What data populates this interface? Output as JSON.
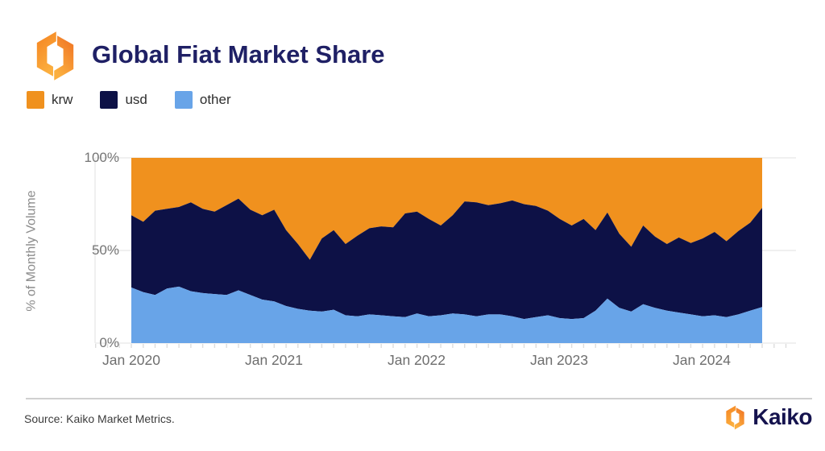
{
  "header": {
    "title": "Global Fiat Market Share"
  },
  "legend": {
    "items": [
      {
        "label": "krw",
        "color": "#F0911E"
      },
      {
        "label": "usd",
        "color": "#0D1146"
      },
      {
        "label": "other",
        "color": "#68A4E8"
      }
    ]
  },
  "chart": {
    "y_axis_label": "% of Monthly Volume",
    "y_ticks": [
      "100%",
      "50%",
      "0%"
    ],
    "x_ticks": [
      "Jan 2020",
      "Jan 2021",
      "Jan 2022",
      "Jan 2023",
      "Jan 2024"
    ]
  },
  "chart_data": {
    "type": "area",
    "stacked": true,
    "unit": "percent_of_monthly_volume",
    "title": "Global Fiat Market Share",
    "ylabel": "% of Monthly Volume",
    "ylim": [
      0,
      100
    ],
    "grid": "horizontal",
    "legend_position": "top-left",
    "x_tick_labels": [
      "Jan 2020",
      "Jan 2021",
      "Jan 2022",
      "Jan 2023",
      "Jan 2024"
    ],
    "y_tick_labels": [
      "100%",
      "50%",
      "0%"
    ],
    "x_months": [
      "2020-01",
      "2020-02",
      "2020-03",
      "2020-04",
      "2020-05",
      "2020-06",
      "2020-07",
      "2020-08",
      "2020-09",
      "2020-10",
      "2020-11",
      "2020-12",
      "2021-01",
      "2021-02",
      "2021-03",
      "2021-04",
      "2021-05",
      "2021-06",
      "2021-07",
      "2021-08",
      "2021-09",
      "2021-10",
      "2021-11",
      "2021-12",
      "2022-01",
      "2022-02",
      "2022-03",
      "2022-04",
      "2022-05",
      "2022-06",
      "2022-07",
      "2022-08",
      "2022-09",
      "2022-10",
      "2022-11",
      "2022-12",
      "2023-01",
      "2023-02",
      "2023-03",
      "2023-04",
      "2023-05",
      "2023-06",
      "2023-07",
      "2023-08",
      "2023-09",
      "2023-10",
      "2023-11",
      "2023-12",
      "2024-01",
      "2024-02",
      "2024-03",
      "2024-04",
      "2024-05",
      "2024-06"
    ],
    "series": [
      {
        "name": "krw",
        "color": "#F0911E",
        "values": [
          31,
          34.5,
          28.5,
          27.5,
          26.5,
          24,
          27.5,
          29,
          25.5,
          22,
          28,
          31,
          28,
          39,
          46.5,
          55,
          43.5,
          39,
          46.5,
          42,
          38,
          37,
          37.5,
          30,
          29,
          33,
          36.5,
          31,
          23.5,
          24,
          25.5,
          24.5,
          23,
          25,
          26,
          28.5,
          33,
          36.5,
          33,
          39,
          29.5,
          41,
          48,
          36.5,
          42.5,
          46.5,
          43,
          46,
          43.5,
          40,
          45,
          39.5,
          35,
          27
        ]
      },
      {
        "name": "usd",
        "color": "#0D1146",
        "values": [
          39,
          38,
          45.5,
          43,
          43,
          48,
          45.5,
          44.5,
          48.5,
          49.5,
          46,
          45.5,
          49.5,
          41,
          35,
          27.5,
          39.5,
          43,
          38.5,
          43.5,
          46.5,
          48,
          48,
          56,
          55,
          52.5,
          48.5,
          53,
          61,
          61.5,
          59,
          60,
          62.5,
          62,
          60,
          56.5,
          53.5,
          50.5,
          53.5,
          43.5,
          46.5,
          40,
          35,
          42.5,
          38.5,
          36,
          40.5,
          38.5,
          42,
          45,
          41,
          45,
          47.5,
          53.5
        ]
      },
      {
        "name": "other",
        "color": "#68A4E8",
        "values": [
          30,
          27.5,
          26,
          29.5,
          30.5,
          28,
          27,
          26.5,
          26,
          28.5,
          26,
          23.5,
          22.5,
          20,
          18.5,
          17.5,
          17,
          18,
          15,
          14.5,
          15.5,
          15,
          14.5,
          14,
          16,
          14.5,
          15,
          16,
          15.5,
          14.5,
          15.5,
          15.5,
          14.5,
          13,
          14,
          15,
          13.5,
          13,
          13.5,
          17.5,
          24,
          19,
          17,
          21,
          19,
          17.5,
          16.5,
          15.5,
          14.5,
          15,
          14,
          15.5,
          17.5,
          19.5
        ]
      }
    ]
  },
  "footer": {
    "source": "Source: Kaiko Market Metrics.",
    "brand": "Kaiko"
  }
}
